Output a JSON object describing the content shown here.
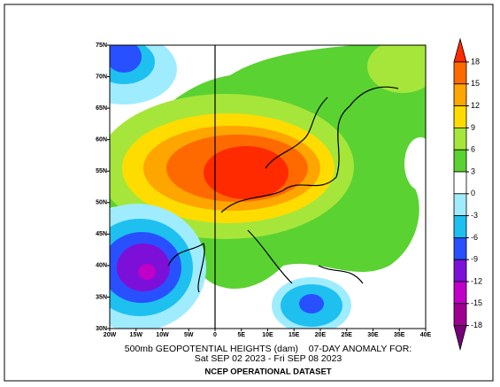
{
  "map": {
    "title_line1": "500mb GEOPOTENTIAL HEIGHTS (dam)    07-DAY ANOMALY FOR:",
    "title_line2": "Sat SEP 02 2023 - Fri SEP 08 2023",
    "dataset": "NCEP OPERATIONAL DATASET",
    "lat_ticks": [
      {
        "value": 75,
        "label": "75N"
      },
      {
        "value": 70,
        "label": "70N"
      },
      {
        "value": 65,
        "label": "65N"
      },
      {
        "value": 60,
        "label": "60N"
      },
      {
        "value": 55,
        "label": "55N"
      },
      {
        "value": 50,
        "label": "50N"
      },
      {
        "value": 45,
        "label": "45N"
      },
      {
        "value": 40,
        "label": "40N"
      },
      {
        "value": 35,
        "label": "35N"
      },
      {
        "value": 30,
        "label": "30N"
      }
    ],
    "lon_ticks": [
      {
        "value": -20,
        "label": "20W"
      },
      {
        "value": -15,
        "label": "15W"
      },
      {
        "value": -10,
        "label": "10W"
      },
      {
        "value": -5,
        "label": "5W"
      },
      {
        "value": 0,
        "label": "0"
      },
      {
        "value": 5,
        "label": "5E"
      },
      {
        "value": 10,
        "label": "10E"
      },
      {
        "value": 15,
        "label": "15E"
      },
      {
        "value": 20,
        "label": "20E"
      },
      {
        "value": 25,
        "label": "25E"
      },
      {
        "value": 30,
        "label": "30E"
      },
      {
        "value": 35,
        "label": "35E"
      },
      {
        "value": 40,
        "label": "40E"
      }
    ],
    "lat_range": [
      30,
      75
    ],
    "lon_range": [
      -20,
      40
    ],
    "colorbar_levels": [
      18,
      15,
      12,
      9,
      6,
      3,
      0,
      -3,
      -6,
      -9,
      -12,
      -15,
      -18
    ],
    "colorbar_colors": [
      "#ff2a00",
      "#ff6a00",
      "#ffa500",
      "#ffdc00",
      "#a6e63a",
      "#5ad232",
      "#ffffff",
      "#a0ecff",
      "#1ec0f0",
      "#2850ff",
      "#7c10d8",
      "#c000c8",
      "#a00090",
      "#780078"
    ]
  }
}
